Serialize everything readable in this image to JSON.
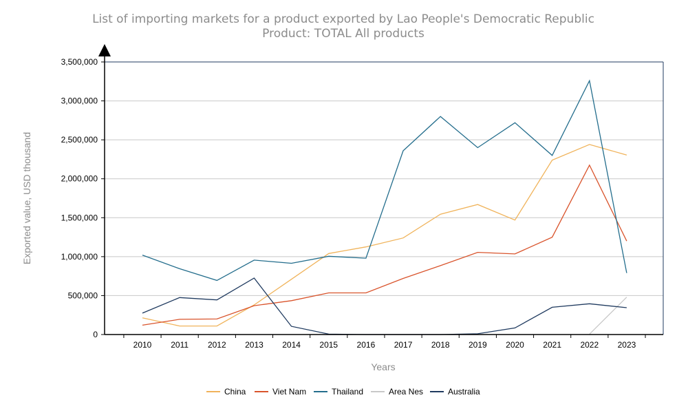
{
  "chart_data": {
    "type": "line",
    "title": "List of importing markets for a product exported by Lao People's Democratic Republic",
    "subtitle": "Product: TOTAL All products",
    "xlabel": "Years",
    "ylabel": "Exported value, USD thousand",
    "categories": [
      "2010",
      "2011",
      "2012",
      "2013",
      "2014",
      "2015",
      "2016",
      "2017",
      "2018",
      "2019",
      "2020",
      "2021",
      "2022",
      "2023"
    ],
    "ylim": [
      0,
      3500000
    ],
    "y_ticks": [
      0,
      500000,
      1000000,
      1500000,
      2000000,
      2500000,
      3000000,
      3500000
    ],
    "y_tick_labels": [
      "0",
      "500,000",
      "1,000,000",
      "1,500,000",
      "2,000,000",
      "2,500,000",
      "3,000,000",
      "3,500,000"
    ],
    "grid": true,
    "legend_position": "bottom",
    "series": [
      {
        "name": "China",
        "color": "#f0b35a",
        "values": [
          215000,
          110000,
          110000,
          380000,
          710000,
          1040000,
          1125000,
          1240000,
          1545000,
          1670000,
          1470000,
          2240000,
          2440000,
          2305000
        ]
      },
      {
        "name": "Viet Nam",
        "color": "#d9532b",
        "values": [
          120000,
          195000,
          200000,
          370000,
          435000,
          535000,
          535000,
          720000,
          885000,
          1055000,
          1035000,
          1250000,
          2175000,
          1200000
        ]
      },
      {
        "name": "Thailand",
        "color": "#236d8c",
        "values": [
          1020000,
          845000,
          695000,
          955000,
          915000,
          1005000,
          980000,
          2360000,
          2800000,
          2400000,
          2720000,
          2300000,
          3260000,
          790000
        ]
      },
      {
        "name": "Area Nes",
        "color": "#c8c8c8",
        "values": [
          null,
          null,
          null,
          null,
          null,
          null,
          null,
          null,
          null,
          null,
          null,
          null,
          5000,
          480000
        ]
      },
      {
        "name": "Australia",
        "color": "#1f3a5f",
        "values": [
          275000,
          475000,
          445000,
          725000,
          105000,
          5000,
          0,
          0,
          0,
          10000,
          85000,
          350000,
          395000,
          345000
        ]
      }
    ]
  }
}
